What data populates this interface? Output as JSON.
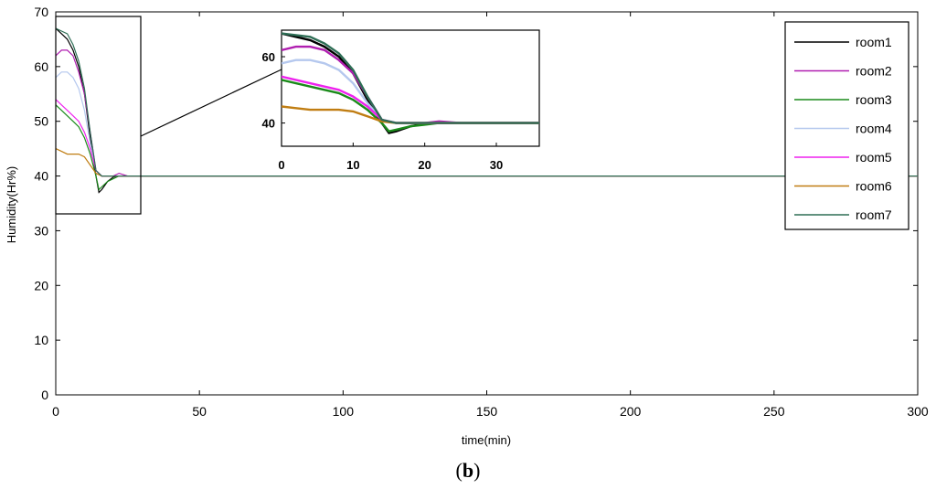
{
  "chart_data": {
    "type": "line",
    "xlabel": "time(min)",
    "ylabel": "Humidity(Hr%)",
    "xlim": [
      0,
      300
    ],
    "ylim": [
      0,
      70
    ],
    "xticks": [
      0,
      50,
      100,
      150,
      200,
      250,
      300
    ],
    "yticks": [
      0,
      10,
      20,
      30,
      40,
      50,
      60,
      70
    ],
    "grid": false,
    "legend_position": "top-right",
    "series": [
      {
        "name": "room1",
        "color": "#000000",
        "x": [
          0,
          2,
          4,
          6,
          8,
          10,
          12,
          14,
          15,
          16,
          18,
          20,
          22,
          25,
          300
        ],
        "y": [
          67,
          66,
          65,
          63,
          60,
          55,
          47,
          40,
          37,
          37.5,
          39,
          39.8,
          40,
          40,
          40
        ]
      },
      {
        "name": "room2",
        "color": "#b01fb0",
        "x": [
          0,
          2,
          4,
          6,
          8,
          10,
          12,
          14,
          16,
          18,
          20,
          22,
          25,
          300
        ],
        "y": [
          62,
          63,
          63,
          62,
          59,
          55,
          48,
          41,
          40,
          40,
          40,
          40.5,
          40,
          40
        ]
      },
      {
        "name": "room3",
        "color": "#1a8a1a",
        "x": [
          0,
          2,
          4,
          6,
          8,
          10,
          12,
          14,
          15,
          16,
          18,
          20,
          22,
          25,
          300
        ],
        "y": [
          53,
          52,
          51,
          50,
          49,
          47,
          44,
          40,
          37.5,
          38,
          39,
          39.5,
          40,
          40,
          40
        ]
      },
      {
        "name": "room4",
        "color": "#b5c8ee",
        "x": [
          0,
          2,
          4,
          6,
          8,
          10,
          12,
          14,
          16,
          18,
          20,
          25,
          300
        ],
        "y": [
          58,
          59,
          59,
          58,
          56,
          52,
          46,
          41,
          40,
          40,
          40,
          40,
          40
        ]
      },
      {
        "name": "room5",
        "color": "#ee22ee",
        "x": [
          0,
          2,
          4,
          6,
          8,
          10,
          12,
          14,
          16,
          18,
          20,
          25,
          300
        ],
        "y": [
          54,
          53,
          52,
          51,
          50,
          48,
          45,
          41,
          40,
          40,
          40,
          40,
          40
        ]
      },
      {
        "name": "room6",
        "color": "#c07d12",
        "x": [
          0,
          2,
          4,
          6,
          8,
          10,
          12,
          14,
          16,
          18,
          20,
          25,
          300
        ],
        "y": [
          45,
          44.5,
          44,
          44,
          44,
          43.5,
          42,
          40.5,
          40,
          40,
          40,
          40,
          40
        ]
      },
      {
        "name": "room7",
        "color": "#2e6e55",
        "x": [
          0,
          2,
          4,
          6,
          8,
          10,
          12,
          14,
          16,
          18,
          20,
          25,
          300
        ],
        "y": [
          67,
          66.5,
          66,
          64,
          61,
          56,
          48,
          41,
          40,
          40,
          40,
          40,
          40
        ]
      }
    ],
    "inset": {
      "xlim": [
        0,
        36
      ],
      "ylim": [
        33,
        68
      ],
      "xticks": [
        0,
        10,
        20,
        30
      ],
      "yticks": [
        40,
        60
      ]
    }
  },
  "caption": {
    "open": "(",
    "letter": "b",
    "close": ")"
  }
}
